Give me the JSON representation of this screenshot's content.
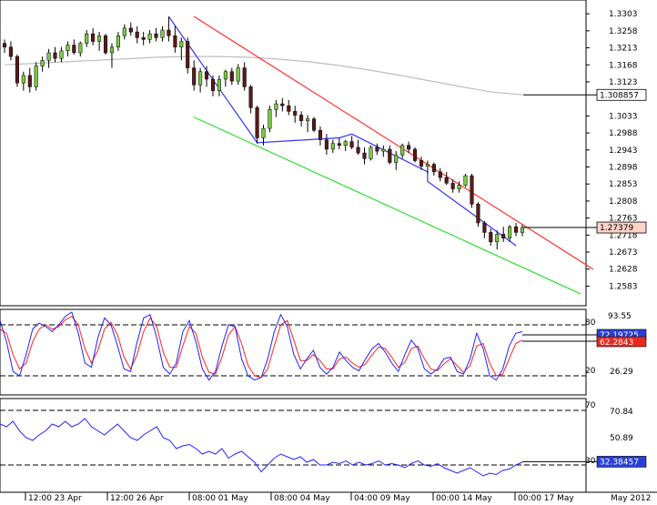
{
  "chart_data": {
    "type": "candlestick",
    "instrument": "",
    "main": {
      "y_ticks": [
        "1.3303",
        "1.3258",
        "1.3213",
        "1.3168",
        "1.3123",
        "1.3033",
        "1.2988",
        "1.2943",
        "1.2898",
        "1.2853",
        "1.2808",
        "1.2763",
        "1.2718",
        "1.2673",
        "1.2628",
        "1.2583"
      ],
      "ylim": [
        1.256,
        1.3325
      ],
      "price_label": "1.27379",
      "price_value": 1.27379,
      "ma_label": "1.308857",
      "ma_value": 1.30886,
      "candles": [
        [
          1.3225,
          1.3235,
          1.32,
          1.3215
        ],
        [
          1.3215,
          1.323,
          1.318,
          1.319
        ],
        [
          1.319,
          1.3195,
          1.311,
          1.312
        ],
        [
          1.312,
          1.315,
          1.31,
          1.314
        ],
        [
          1.314,
          1.316,
          1.3095,
          1.311
        ],
        [
          1.311,
          1.3175,
          1.31,
          1.3165
        ],
        [
          1.3165,
          1.319,
          1.315,
          1.318
        ],
        [
          1.318,
          1.321,
          1.316,
          1.32
        ],
        [
          1.32,
          1.3215,
          1.3175,
          1.3185
        ],
        [
          1.3185,
          1.3215,
          1.3175,
          1.3205
        ],
        [
          1.3205,
          1.323,
          1.319,
          1.322
        ],
        [
          1.322,
          1.3235,
          1.3195,
          1.32
        ],
        [
          1.32,
          1.323,
          1.319,
          1.3225
        ],
        [
          1.3225,
          1.326,
          1.3215,
          1.325
        ],
        [
          1.325,
          1.3265,
          1.322,
          1.323
        ],
        [
          1.323,
          1.3255,
          1.3205,
          1.3245
        ],
        [
          1.3245,
          1.325,
          1.3195,
          1.32
        ],
        [
          1.32,
          1.3225,
          1.316,
          1.3215
        ],
        [
          1.3215,
          1.3255,
          1.3205,
          1.3245
        ],
        [
          1.3245,
          1.3275,
          1.3235,
          1.3265
        ],
        [
          1.3265,
          1.328,
          1.3245,
          1.3255
        ],
        [
          1.3255,
          1.327,
          1.3225,
          1.324
        ],
        [
          1.324,
          1.3255,
          1.322,
          1.3235
        ],
        [
          1.3235,
          1.326,
          1.3225,
          1.325
        ],
        [
          1.325,
          1.3265,
          1.323,
          1.324
        ],
        [
          1.324,
          1.327,
          1.323,
          1.326
        ],
        [
          1.326,
          1.3295,
          1.323,
          1.3245
        ],
        [
          1.3245,
          1.327,
          1.32,
          1.3215
        ],
        [
          1.3215,
          1.324,
          1.318,
          1.323
        ],
        [
          1.323,
          1.324,
          1.3145,
          1.316
        ],
        [
          1.316,
          1.318,
          1.31,
          1.3115
        ],
        [
          1.3115,
          1.316,
          1.3095,
          1.315
        ],
        [
          1.315,
          1.3165,
          1.311,
          1.313
        ],
        [
          1.313,
          1.314,
          1.3085,
          1.31
        ],
        [
          1.31,
          1.314,
          1.3085,
          1.313
        ],
        [
          1.313,
          1.3155,
          1.311,
          1.315
        ],
        [
          1.315,
          1.316,
          1.3115,
          1.3125
        ],
        [
          1.3125,
          1.317,
          1.3115,
          1.316
        ],
        [
          1.316,
          1.3175,
          1.31,
          1.311
        ],
        [
          1.311,
          1.3115,
          1.304,
          1.3055
        ],
        [
          1.3055,
          1.306,
          1.296,
          1.2975
        ],
        [
          1.2975,
          1.301,
          1.2955,
          1.3
        ],
        [
          1.3,
          1.306,
          1.299,
          1.305
        ],
        [
          1.305,
          1.3075,
          1.303,
          1.3065
        ],
        [
          1.3065,
          1.308,
          1.3045,
          1.306
        ],
        [
          1.306,
          1.3075,
          1.3035,
          1.3045
        ],
        [
          1.3045,
          1.306,
          1.3015,
          1.3035
        ],
        [
          1.3035,
          1.3045,
          1.3005,
          1.302
        ],
        [
          1.302,
          1.3035,
          1.299,
          1.3025
        ],
        [
          1.3025,
          1.303,
          1.299,
          1.2995
        ],
        [
          1.2995,
          1.3005,
          1.2955,
          1.297
        ],
        [
          1.297,
          1.2985,
          1.293,
          1.2945
        ],
        [
          1.2945,
          1.297,
          1.2935,
          1.296
        ],
        [
          1.296,
          1.2975,
          1.2945,
          1.2955
        ],
        [
          1.2955,
          1.297,
          1.294,
          1.2965
        ],
        [
          1.2965,
          1.298,
          1.2945,
          1.295
        ],
        [
          1.295,
          1.297,
          1.293,
          1.2935
        ],
        [
          1.2935,
          1.295,
          1.2905,
          1.292
        ],
        [
          1.292,
          1.2955,
          1.2915,
          1.295
        ],
        [
          1.295,
          1.296,
          1.293,
          1.294
        ],
        [
          1.294,
          1.2955,
          1.2925,
          1.2945
        ],
        [
          1.2945,
          1.2955,
          1.2905,
          1.291
        ],
        [
          1.291,
          1.294,
          1.289,
          1.293
        ],
        [
          1.293,
          1.296,
          1.292,
          1.2955
        ],
        [
          1.2955,
          1.2965,
          1.2935,
          1.2945
        ],
        [
          1.2945,
          1.295,
          1.291,
          1.2915
        ],
        [
          1.2915,
          1.2925,
          1.289,
          1.29
        ],
        [
          1.29,
          1.2915,
          1.288,
          1.2905
        ],
        [
          1.2905,
          1.291,
          1.2875,
          1.2885
        ],
        [
          1.2885,
          1.2895,
          1.286,
          1.287
        ],
        [
          1.287,
          1.2885,
          1.285,
          1.2855
        ],
        [
          1.2855,
          1.2865,
          1.283,
          1.284
        ],
        [
          1.284,
          1.286,
          1.283,
          1.285
        ],
        [
          1.285,
          1.288,
          1.2845,
          1.2875
        ],
        [
          1.2875,
          1.288,
          1.279,
          1.28
        ],
        [
          1.28,
          1.2805,
          1.274,
          1.275
        ],
        [
          1.275,
          1.2755,
          1.271,
          1.2725
        ],
        [
          1.2725,
          1.2735,
          1.269,
          1.27
        ],
        [
          1.27,
          1.273,
          1.268,
          1.272
        ],
        [
          1.272,
          1.274,
          1.27,
          1.271
        ],
        [
          1.271,
          1.2745,
          1.27,
          1.274
        ],
        [
          1.274,
          1.275,
          1.2715,
          1.2725
        ],
        [
          1.2725,
          1.2745,
          1.2715,
          1.2738
        ]
      ],
      "ma_series": [
        1.3168,
        1.3172,
        1.3176,
        1.318,
        1.3184,
        1.3188,
        1.319,
        1.319,
        1.3188,
        1.3183,
        1.3176,
        1.3166,
        1.3154,
        1.314,
        1.3125,
        1.311,
        1.3096,
        1.3089
      ],
      "red_channel": [
        1.3296,
        1.2637
      ],
      "green_channel": [
        1.303,
        1.2572
      ],
      "blue_zigzag": [
        [
          26,
          1.3296
        ],
        [
          40,
          1.2962
        ],
        [
          53,
          1.2975
        ],
        [
          55,
          1.2985
        ],
        [
          67,
          1.2885
        ],
        [
          67,
          1.286
        ],
        [
          81,
          1.269
        ]
      ]
    },
    "stochastic": {
      "y_ticks": [
        "93.55",
        "80",
        "26.29",
        "20"
      ],
      "levels": [
        80,
        20
      ],
      "ylim": [
        0,
        100
      ],
      "k_label": "72.19725",
      "d_label": "62.2843",
      "k_values": [
        85,
        60,
        25,
        20,
        45,
        75,
        82,
        78,
        72,
        80,
        90,
        95,
        70,
        35,
        30,
        65,
        88,
        80,
        55,
        28,
        25,
        60,
        88,
        92,
        65,
        30,
        22,
        35,
        72,
        85,
        60,
        28,
        15,
        25,
        55,
        80,
        78,
        40,
        20,
        15,
        18,
        40,
        72,
        92,
        78,
        45,
        28,
        40,
        50,
        30,
        22,
        30,
        48,
        38,
        30,
        26,
        40,
        52,
        58,
        48,
        35,
        25,
        45,
        62,
        52,
        28,
        22,
        28,
        40,
        42,
        25,
        22,
        40,
        70,
        52,
        20,
        15,
        28,
        55,
        70,
        72
      ],
      "d_values": [
        75,
        70,
        45,
        28,
        35,
        60,
        75,
        80,
        75,
        78,
        86,
        90,
        80,
        52,
        35,
        50,
        75,
        83,
        68,
        42,
        28,
        45,
        72,
        88,
        78,
        48,
        30,
        30,
        55,
        78,
        70,
        42,
        24,
        22,
        42,
        68,
        78,
        58,
        32,
        20,
        18,
        28,
        55,
        80,
        85,
        62,
        38,
        38,
        45,
        38,
        28,
        28,
        40,
        42,
        35,
        30,
        34,
        45,
        54,
        52,
        42,
        30,
        36,
        52,
        55,
        40,
        28,
        26,
        34,
        40,
        32,
        24,
        32,
        55,
        58,
        35,
        20,
        22,
        40,
        58,
        62
      ]
    },
    "rsi": {
      "y_ticks": [
        "70.84",
        "70",
        "50.89",
        "30"
      ],
      "levels": [
        70,
        30
      ],
      "ylim": [
        20,
        75
      ],
      "value_label": "32.38457",
      "values": [
        60,
        58,
        62,
        55,
        50,
        48,
        52,
        55,
        60,
        58,
        62,
        58,
        60,
        64,
        58,
        55,
        52,
        56,
        60,
        55,
        50,
        48,
        52,
        55,
        58,
        50,
        48,
        42,
        44,
        45,
        42,
        38,
        40,
        38,
        42,
        35,
        38,
        40,
        36,
        32,
        25,
        30,
        35,
        38,
        36,
        34,
        36,
        32,
        34,
        30,
        30,
        32,
        31,
        33,
        30,
        32,
        30,
        31,
        33,
        30,
        31,
        30,
        28,
        31,
        33,
        30,
        29,
        31,
        28,
        26,
        24,
        26,
        28,
        25,
        22,
        24,
        23,
        26,
        27,
        30,
        32
      ]
    },
    "x_labels": [
      "12:00 23 Apr",
      "12:00 26 Apr",
      "08:00 01 May",
      "08:00 04 May",
      "04:00 09 May",
      "00:00 14 May",
      "00:00 17 May",
      "May 2012"
    ]
  }
}
